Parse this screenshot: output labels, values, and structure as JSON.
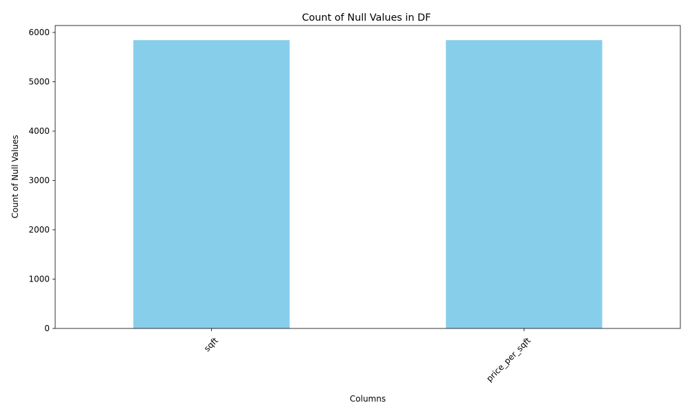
{
  "chart_data": {
    "type": "bar",
    "title": "Count of Null Values in DF",
    "xlabel": "Columns",
    "ylabel": "Count of Null Values",
    "categories": [
      "sqft",
      "price_per_sqft"
    ],
    "values": [
      5844,
      5844
    ],
    "ylim": [
      0,
      6140
    ],
    "yticks": [
      0,
      1000,
      2000,
      3000,
      4000,
      5000,
      6000
    ],
    "bar_color": "#87ceeb",
    "grid": false,
    "legend": "none",
    "x_tick_rotation": 45
  }
}
